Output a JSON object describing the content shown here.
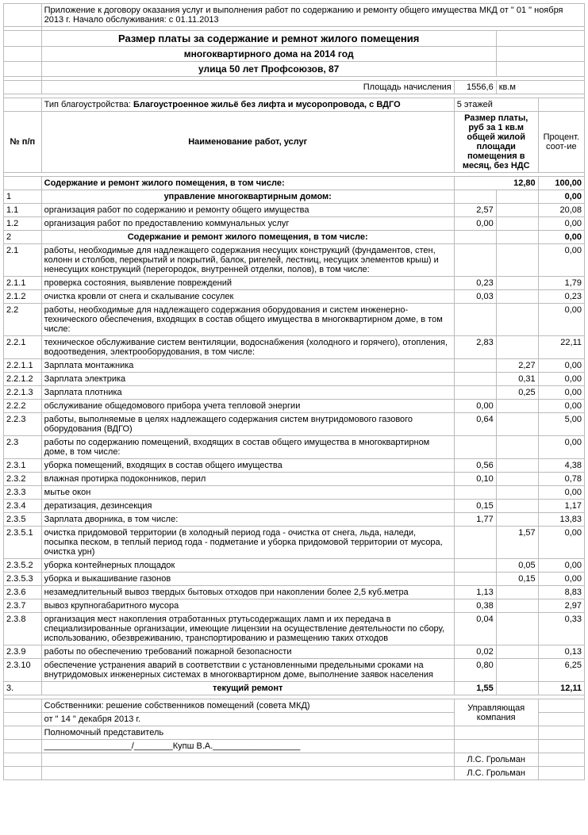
{
  "header": {
    "appendix": "Приложение к договору оказания услуг и выполнения работ по содержанию и ремонту общего имущества МКД  от \" 01 \"  ноября  2013 г. Начало обслуживания: с 01.11.2013",
    "title1": "Размер платы за содержание и ремнот жилого помещения",
    "title2": "многоквартирного дома на 2014 год",
    "title3": "улица 50 лет Профсоюзов, 87",
    "area_label": "Площадь начисления",
    "area_value": "1556,6",
    "area_unit": "кв.м",
    "type_label": "Тип благоустройства:",
    "type_value": "Благоустроенное жильё без лифта и мусоропровода, с ВДГО",
    "floors": "5 этажей"
  },
  "thead": {
    "num": "№ п/п",
    "name": "Наименование работ, услуг",
    "price": "Размер платы, руб за 1 кв.м общей жилой площади помещения в месяц, без НДС",
    "pct": "Процент. соот-ие"
  },
  "total_row": {
    "label": "Содержание и ремонт жилого помещения, в том числе:",
    "v": "12,80",
    "p": "100,00"
  },
  "rows": [
    {
      "n": "1",
      "d": "управление многоквартирным домом:",
      "v1": "",
      "v2": "",
      "p": "0,00",
      "bold": true,
      "center": true
    },
    {
      "n": "1.1",
      "d": "организация работ по содержанию и ремонту общего имущества",
      "v1": "2,57",
      "v2": "",
      "p": "20,08"
    },
    {
      "n": "1.2",
      "d": "организация работ по предоставлению коммунальных услуг",
      "v1": "0,00",
      "v2": "",
      "p": "0,00"
    },
    {
      "n": "2",
      "d": "Содержание и ремонт жилого помещения, в том числе:",
      "v1": "",
      "v2": "",
      "p": "0,00",
      "bold": true,
      "center": true
    },
    {
      "n": "2.1",
      "d": "работы, необходимые для надлежащего содержания несущих конструкций (фундаментов, стен, колонн и столбов, перекрытий и покрытий, балок, ригелей, лестниц, несущих элементов крыш) и ненесущих конструкций (перегородок, внутренней отделки, полов), в том числе:",
      "v1": "",
      "v2": "",
      "p": "0,00"
    },
    {
      "n": "2.1.1",
      "d": "проверка состояния, выявление повреждений",
      "v1": "0,23",
      "v2": "",
      "p": "1,79"
    },
    {
      "n": "2.1.2",
      "d": "очистка кровли от снега и скалывание сосулек",
      "v1": "0,03",
      "v2": "",
      "p": "0,23"
    },
    {
      "n": "2.2",
      "d": "работы, необходимые для надлежащего содержания оборудования и систем инженерно-технического обеспечения, входящих в состав общего имущества в многоквартирном доме, в том числе:",
      "v1": "",
      "v2": "",
      "p": "0,00"
    },
    {
      "n": "2.2.1",
      "d": "техническое обслуживание систем вентиляции, водоснабжения (холодного и горячего), отопления, водоотведения, электрооборудования, в том числе:",
      "v1": "2,83",
      "v2": "",
      "p": "22,11"
    },
    {
      "n": "2.2.1.1",
      "d": "Зарплата монтажника",
      "v1": "",
      "v2": "2,27",
      "p": "0,00"
    },
    {
      "n": "2.2.1.2",
      "d": "Зарплата электрика",
      "v1": "",
      "v2": "0,31",
      "p": "0,00"
    },
    {
      "n": "2.2.1.3",
      "d": "Зарплата плотника",
      "v1": "",
      "v2": "0,25",
      "p": "0,00"
    },
    {
      "n": "2.2.2",
      "d": "обслуживание общедомового прибора учета тепловой энергии",
      "v1": "0,00",
      "v2": "",
      "p": "0,00"
    },
    {
      "n": "2.2.3",
      "d": "работы, выполняемые в целях надлежащего содержания систем внутридомового газового оборудования (ВДГО)",
      "v1": "0,64",
      "v2": "",
      "p": "5,00"
    },
    {
      "n": "2.3",
      "d": "работы по содержанию помещений, входящих в состав общего имущества в многоквартирном доме, в том числе:",
      "v1": "",
      "v2": "",
      "p": "0,00"
    },
    {
      "n": "2.3.1",
      "d": "уборка помещений, входящих в состав общего имущества",
      "v1": "0,56",
      "v2": "",
      "p": "4,38"
    },
    {
      "n": "2.3.2",
      "d": "влажная протирка подоконников, перил",
      "v1": "0,10",
      "v2": "",
      "p": "0,78"
    },
    {
      "n": "2.3.3",
      "d": "мытье окон",
      "v1": "",
      "v2": "",
      "p": "0,00"
    },
    {
      "n": "2.3.4",
      "d": "дератизация, дезинсекция",
      "v1": "0,15",
      "v2": "",
      "p": "1,17"
    },
    {
      "n": "2.3.5",
      "d": "Зарплата дворника, в том числе:",
      "v1": "1,77",
      "v2": "",
      "p": "13,83"
    },
    {
      "n": "2.3.5.1",
      "d": "очистка придомовой территории (в холодный период года - очистка от снега, льда, наледи, посыпка песком, в теплый период года - подметание и уборка придомовой территории от мусора, очистка урн)",
      "v1": "",
      "v2": "1,57",
      "p": "0,00"
    },
    {
      "n": "2.3.5.2",
      "d": "уборка контейнерных площадок",
      "v1": "",
      "v2": "0,05",
      "p": "0,00"
    },
    {
      "n": "2.3.5.3",
      "d": "уборка и выкашивание газонов",
      "v1": "",
      "v2": "0,15",
      "p": "0,00"
    },
    {
      "n": "2.3.6",
      "d": "незамедлительный вывоз твердых бытовых отходов при накоплении более 2,5 куб.метра",
      "v1": "1,13",
      "v2": "",
      "p": "8,83"
    },
    {
      "n": "2.3.7",
      "d": "вывоз крупногабаритного мусора",
      "v1": "0,38",
      "v2": "",
      "p": "2,97"
    },
    {
      "n": "2.3.8",
      "d": "организация мест накопления отработанных ртутьсодержащих ламп и их передача в специализированные организации, имеющие лицензии на осуществление деятельности по сбору, использованию, обезвреживанию, транспортированию и размещению таких отходов",
      "v1": "0,04",
      "v2": "",
      "p": "0,33"
    },
    {
      "n": "2.3.9",
      "d": "работы по обеспечению требований пожарной безопасности",
      "v1": "0,02",
      "v2": "",
      "p": "0,13"
    },
    {
      "n": "2.3.10",
      "d": "обеспечение устранения аварий в соответствии с установленными предельными сроками на внутридомовых инженерных системах в многоквартирном доме, выполнение заявок населения",
      "v1": "0,80",
      "v2": "",
      "p": "6,25"
    },
    {
      "n": "3.",
      "d": "текущий ремонт",
      "v1": "1,55",
      "v2": "",
      "p": "12,11",
      "bold": true,
      "center": true
    }
  ],
  "footer": {
    "owners": "Собственники: решение собственников помещений (совета МКД)",
    "owners_date": "от \" 14 \"  декабря  2013 г.",
    "rep": "Полномочный представитель",
    "rep_name": "Купш В.А.",
    "company": "Управляющая компания",
    "sign": "Л.С. Грольман"
  }
}
